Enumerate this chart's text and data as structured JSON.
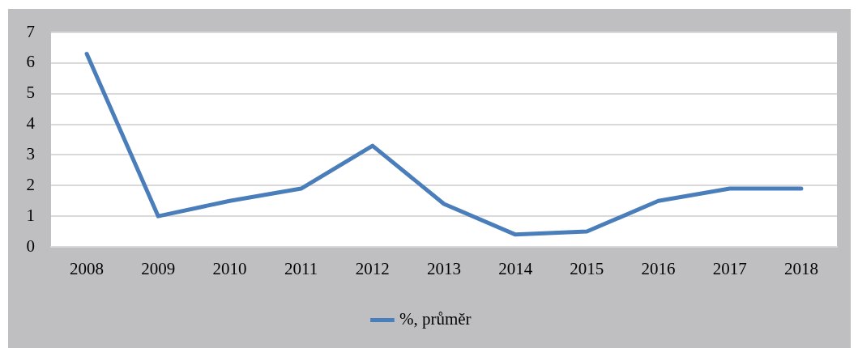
{
  "chart_data": {
    "type": "line",
    "categories": [
      "2008",
      "2009",
      "2010",
      "2011",
      "2012",
      "2013",
      "2014",
      "2015",
      "2016",
      "2017",
      "2018"
    ],
    "series": [
      {
        "name": "%, průměr",
        "color": "#4a7ebb",
        "values": [
          6.3,
          1.0,
          1.5,
          1.9,
          3.3,
          1.4,
          0.4,
          0.5,
          1.5,
          1.9,
          1.9
        ]
      }
    ],
    "ylim": [
      0,
      7
    ],
    "yticks": [
      0,
      1,
      2,
      3,
      4,
      5,
      6,
      7
    ],
    "grid": "y",
    "legend": "bottom",
    "marker": "none",
    "line_style": "solid"
  }
}
